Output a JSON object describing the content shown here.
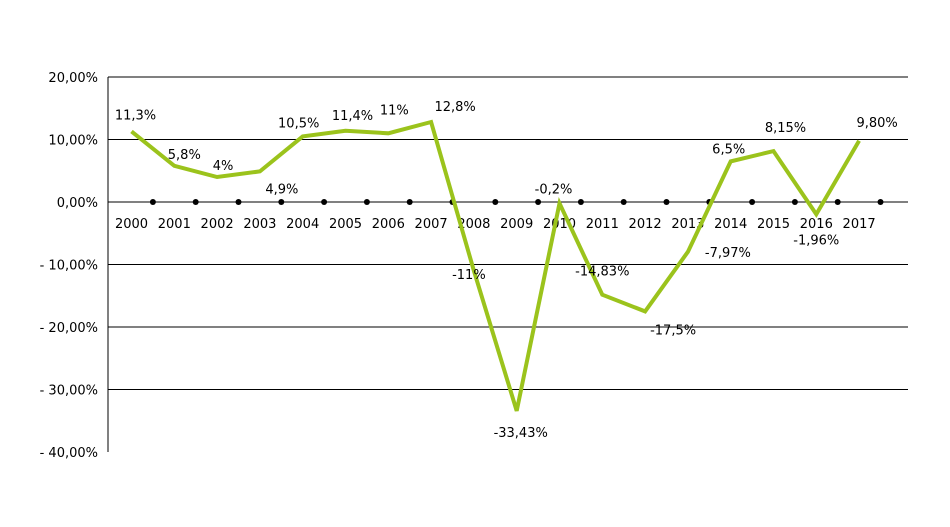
{
  "chart_data": {
    "type": "line",
    "title": "",
    "xlabel": "",
    "ylabel": "",
    "ylim": [
      -40,
      20
    ],
    "grid": true,
    "line_color": "#9bc31c",
    "x": [
      "2000",
      "2001",
      "2002",
      "2003",
      "2004",
      "2005",
      "2006",
      "2007",
      "2008",
      "2009",
      "2010",
      "2011",
      "2012",
      "2013",
      "2014",
      "2015",
      "2016",
      "2017"
    ],
    "y_ticks": [
      {
        "value": 20,
        "label": "20,00%"
      },
      {
        "value": 10,
        "label": "10,00%"
      },
      {
        "value": 0,
        "label": "0,00%"
      },
      {
        "value": -10,
        "label": "- 10,00%"
      },
      {
        "value": -20,
        "label": "- 20,00%"
      },
      {
        "value": -30,
        "label": "- 30,00%"
      },
      {
        "value": -40,
        "label": "- 40,00%"
      }
    ],
    "series": [
      {
        "values": [
          11.3,
          5.8,
          4,
          4.9,
          10.5,
          11.4,
          11,
          12.8,
          -11,
          -33.43,
          -0.2,
          -14.83,
          -17.5,
          -7.97,
          6.5,
          8.15,
          -1.96,
          9.8
        ],
        "labels": [
          "11,3%",
          "5,8%",
          "4%",
          "4,9%",
          "10,5%",
          "11,4%",
          "11%",
          "12,8%",
          "-11%",
          "-33,43%",
          "-0,2%",
          "-14,83%",
          "-17,5%",
          "-7,97%",
          "6,5%",
          "8,15%",
          "-1,96%",
          "9,80%"
        ]
      }
    ]
  }
}
